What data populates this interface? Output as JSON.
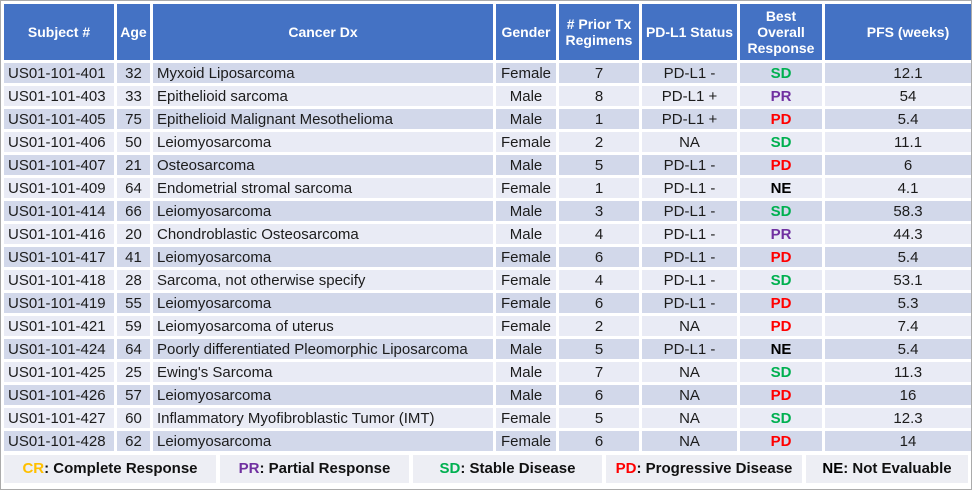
{
  "chart_data": {
    "type": "table",
    "columns": [
      {
        "key": "subject",
        "label": "Subject #"
      },
      {
        "key": "age",
        "label": "Age"
      },
      {
        "key": "dx",
        "label": "Cancer Dx"
      },
      {
        "key": "gender",
        "label": "Gender"
      },
      {
        "key": "prior_tx",
        "label": "# Prior Tx Regimens"
      },
      {
        "key": "pdl1",
        "label": "PD-L1 Status"
      },
      {
        "key": "response",
        "label": "Best Overall Response"
      },
      {
        "key": "pfs",
        "label": "PFS (weeks)"
      }
    ],
    "rows": [
      [
        "US01-101-401",
        "32",
        "Myxoid Liposarcoma",
        "Female",
        "7",
        "PD-L1 -",
        "SD",
        "12.1"
      ],
      [
        "US01-101-403",
        "33",
        "Epithelioid sarcoma",
        "Male",
        "8",
        "PD-L1 +",
        "PR",
        "54"
      ],
      [
        "US01-101-405",
        "75",
        "Epithelioid Malignant Mesothelioma",
        "Male",
        "1",
        "PD-L1 +",
        "PD",
        "5.4"
      ],
      [
        "US01-101-406",
        "50",
        "Leiomyosarcoma",
        "Female",
        "2",
        "NA",
        "SD",
        "11.1"
      ],
      [
        "US01-101-407",
        "21",
        "Osteosarcoma",
        "Male",
        "5",
        "PD-L1 -",
        "PD",
        "6"
      ],
      [
        "US01-101-409",
        "64",
        "Endometrial stromal sarcoma",
        "Female",
        "1",
        "PD-L1 -",
        "NE",
        "4.1"
      ],
      [
        "US01-101-414",
        "66",
        "Leiomyosarcoma",
        "Male",
        "3",
        "PD-L1 -",
        "SD",
        "58.3"
      ],
      [
        "US01-101-416",
        "20",
        "Chondroblastic Osteosarcoma",
        "Male",
        "4",
        "PD-L1 -",
        "PR",
        "44.3"
      ],
      [
        "US01-101-417",
        "41",
        "Leiomyosarcoma",
        "Female",
        "6",
        "PD-L1 -",
        "PD",
        "5.4"
      ],
      [
        "US01-101-418",
        "28",
        "Sarcoma, not otherwise specify",
        "Female",
        "4",
        "PD-L1 -",
        "SD",
        "53.1"
      ],
      [
        "US01-101-419",
        "55",
        "Leiomyosarcoma",
        "Female",
        "6",
        "PD-L1 -",
        "PD",
        "5.3"
      ],
      [
        "US01-101-421",
        "59",
        "Leiomyosarcoma of uterus",
        "Female",
        "2",
        "NA",
        "PD",
        "7.4"
      ],
      [
        "US01-101-424",
        "64",
        "Poorly differentiated Pleomorphic Liposarcoma",
        "Male",
        "5",
        "PD-L1 -",
        "NE",
        "5.4"
      ],
      [
        "US01-101-425",
        "25",
        "Ewing's Sarcoma",
        "Male",
        "7",
        "NA",
        "SD",
        "11.3"
      ],
      [
        "US01-101-426",
        "57",
        "Leiomyosarcoma",
        "Male",
        "6",
        "NA",
        "PD",
        "16"
      ],
      [
        "US01-101-427",
        "60",
        "Inflammatory Myofibroblastic Tumor (IMT)",
        "Female",
        "5",
        "NA",
        "SD",
        "12.3"
      ],
      [
        "US01-101-428",
        "62",
        "Leiomyosarcoma",
        "Female",
        "6",
        "NA",
        "PD",
        "14"
      ]
    ]
  },
  "legend": [
    {
      "code": "CR",
      "separator": ": ",
      "label": "Complete Response",
      "color": "#FFC000"
    },
    {
      "code": "PR",
      "separator": ": ",
      "label": "Partial Response",
      "color": "#7030A0"
    },
    {
      "code": "SD",
      "separator": ": ",
      "label": "Stable Disease",
      "color": "#00B050"
    },
    {
      "code": "PD",
      "separator": ": ",
      "label": "Progressive Disease",
      "color": "#FF0000"
    },
    {
      "code": "NE",
      "separator": ": ",
      "label": "Not Evaluable",
      "color": "#000000"
    }
  ],
  "response_colors": {
    "CR": "#FFC000",
    "PR": "#7030A0",
    "SD": "#00B050",
    "PD": "#FF0000",
    "NE": "#000000"
  },
  "colors": {
    "header_bg": "#4472C4",
    "header_text": "#FFFFFF",
    "row_band_dark": "#D2D8EA",
    "row_band_light": "#E9EBF5",
    "legend_bg": "#EDEEF4"
  }
}
